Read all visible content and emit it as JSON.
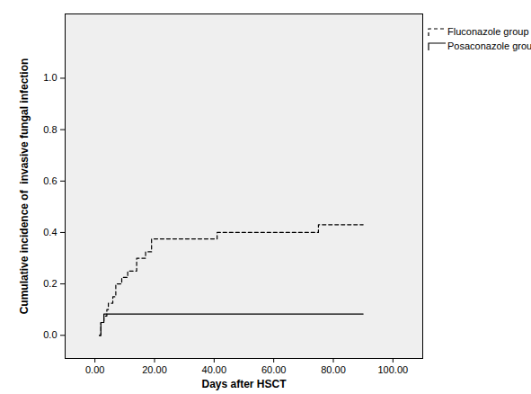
{
  "chart_data": {
    "type": "line",
    "x_label": "Days after HSCT",
    "y_label": "Cumulative incidence of  invasive fungal infection",
    "xlim": [
      -10,
      110
    ],
    "ylim": [
      -0.09,
      1.25
    ],
    "xticks": [
      {
        "value": 0,
        "label": "0.00"
      },
      {
        "value": 20,
        "label": "20.00"
      },
      {
        "value": 40,
        "label": "40.00"
      },
      {
        "value": 60,
        "label": "60.00"
      },
      {
        "value": 80,
        "label": "80.00"
      },
      {
        "value": 100,
        "label": "100.00"
      }
    ],
    "yticks": [
      {
        "value": 0,
        "label": "0.0"
      },
      0.2,
      0.4,
      0.6,
      0.8,
      {
        "value": 1,
        "label": "1.0"
      }
    ],
    "legend": "right",
    "grid": false,
    "series": [
      {
        "name": "Fluconazole group",
        "color": "#000000",
        "line_style": "dashed",
        "x": [
          1.5,
          2,
          3,
          4,
          4.5,
          6,
          7,
          9,
          11,
          14,
          17,
          19,
          41,
          75,
          90
        ],
        "values": [
          0,
          0.05,
          0.075,
          0.1,
          0.125,
          0.15,
          0.2,
          0.225,
          0.25,
          0.3,
          0.325,
          0.375,
          0.4,
          0.43,
          0.43
        ]
      },
      {
        "name": "Posaconazole group",
        "color": "#000000",
        "line_style": "solid",
        "x": [
          1.5,
          2,
          3,
          90
        ],
        "values": [
          0,
          0.05,
          0.083,
          0.083
        ]
      }
    ]
  }
}
